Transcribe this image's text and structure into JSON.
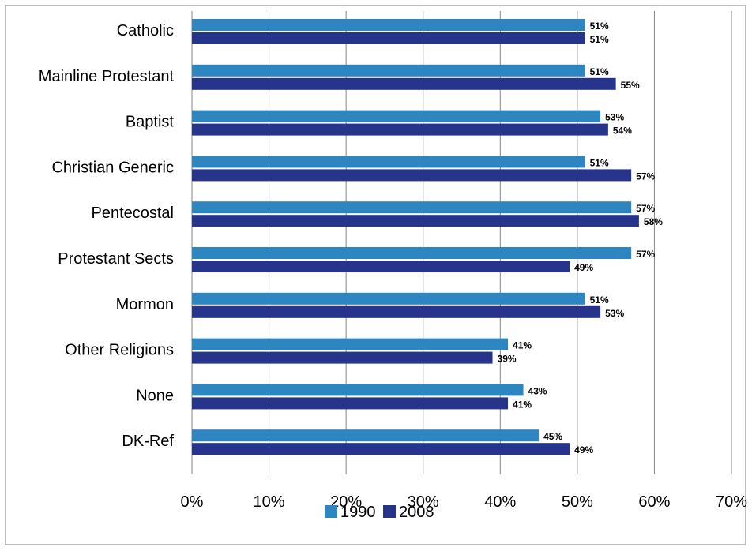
{
  "chart_data": {
    "type": "bar",
    "orientation": "horizontal",
    "categories": [
      "Catholic",
      "Mainline Protestant",
      "Baptist",
      "Christian Generic",
      "Pentecostal",
      "Protestant Sects",
      "Mormon",
      "Other Religions",
      "None",
      "DK-Ref"
    ],
    "series": [
      {
        "name": "1990",
        "color": "#2e86c1",
        "values": [
          51,
          51,
          53,
          51,
          57,
          57,
          51,
          41,
          43,
          45
        ],
        "labels": [
          "51%",
          "51%",
          "53%",
          "51%",
          "57%",
          "57%",
          "51%",
          "41%",
          "43%",
          "45%"
        ]
      },
      {
        "name": "2008",
        "color": "#27348b",
        "values": [
          51,
          55,
          54,
          57,
          58,
          49,
          53,
          39,
          41,
          49
        ],
        "labels": [
          "51%",
          "55%",
          "54%",
          "57%",
          "58%",
          "49%",
          "53%",
          "39%",
          "41%",
          "49%"
        ]
      }
    ],
    "xlim": [
      0,
      70
    ],
    "xticks": [
      0,
      10,
      20,
      30,
      40,
      50,
      60,
      70
    ],
    "xtick_labels": [
      "0%",
      "10%",
      "20%",
      "30%",
      "40%",
      "50%",
      "60%",
      "70%"
    ],
    "grid": "vertical",
    "legend": "bottom-center",
    "title": "",
    "xlabel": "",
    "ylabel": ""
  }
}
